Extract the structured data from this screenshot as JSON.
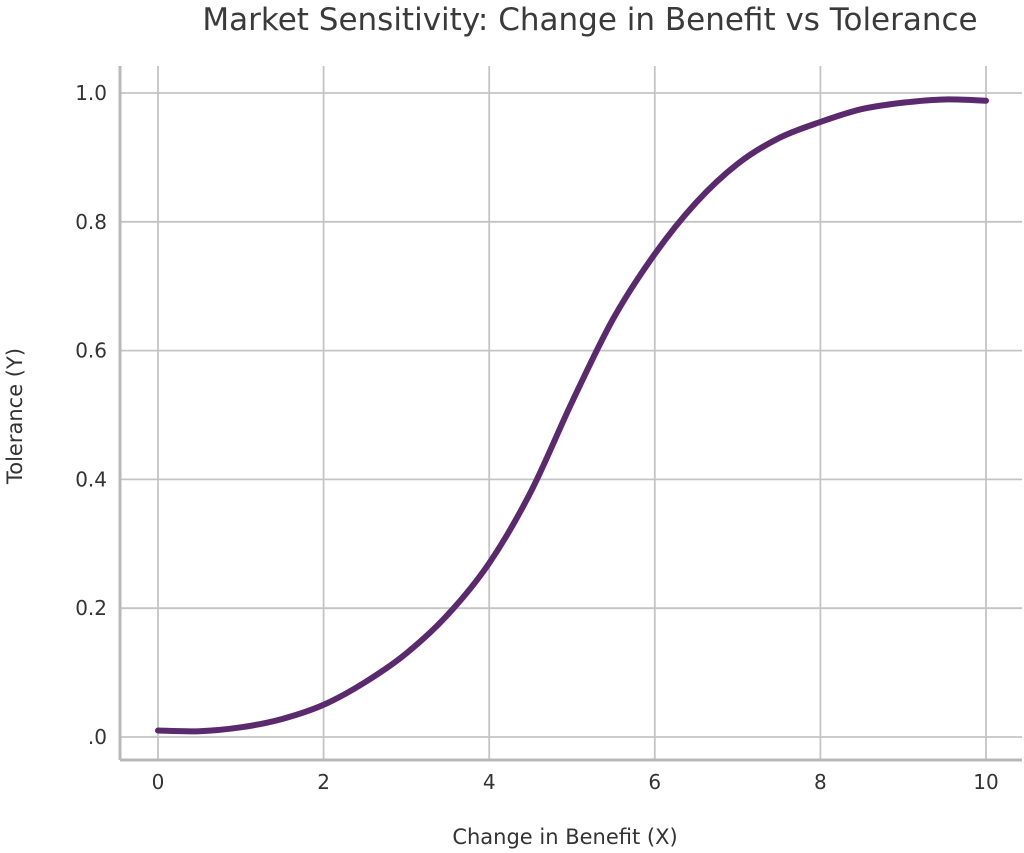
{
  "chart_data": {
    "type": "line",
    "title": "Market Sensitivity: Change in Benefit vs Tolerance",
    "xlabel": "Change in Benefit (X)",
    "ylabel": "Tolerance (Y)",
    "xlim": [
      0,
      10
    ],
    "ylim": [
      0,
      1.0
    ],
    "x_ticks": [
      0,
      2,
      4,
      6,
      8,
      10
    ],
    "x_tick_labels": [
      "0",
      "2",
      "4",
      "6",
      "8",
      "10"
    ],
    "y_ticks": [
      0,
      0.2,
      0.4,
      0.6,
      0.8,
      1.0
    ],
    "y_tick_labels": [
      ".0",
      "0.2",
      "0.4",
      "0.6",
      "0.8",
      "1.0"
    ],
    "grid": true,
    "series": [
      {
        "color": "#5b2a6e",
        "x": [
          0,
          0.5,
          1,
          1.5,
          2,
          2.5,
          3,
          3.5,
          4,
          4.5,
          5,
          5.5,
          6,
          6.5,
          7,
          7.5,
          8,
          8.5,
          9,
          9.5,
          10
        ],
        "y": [
          0.01,
          0.009,
          0.015,
          0.028,
          0.05,
          0.085,
          0.13,
          0.19,
          0.27,
          0.38,
          0.52,
          0.65,
          0.75,
          0.83,
          0.89,
          0.93,
          0.955,
          0.975,
          0.985,
          0.99,
          0.988
        ]
      }
    ]
  }
}
